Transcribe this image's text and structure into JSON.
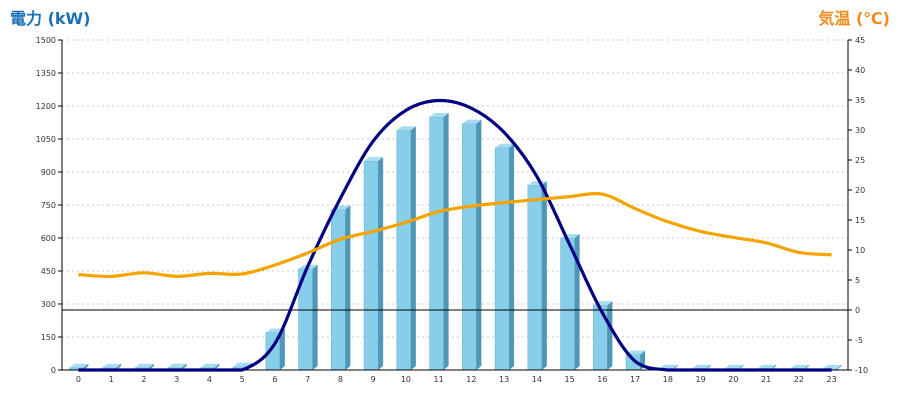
{
  "chart_data": {
    "type": "bar",
    "title": "",
    "left_axis": {
      "label": "電力 (kW)",
      "color": "#1a6fb5",
      "ylim": [
        0,
        1500
      ],
      "ticks": [
        0,
        150,
        300,
        450,
        600,
        750,
        900,
        1050,
        1200,
        1350,
        1500
      ]
    },
    "right_axis": {
      "label": "気温 (℃)",
      "color": "#f08c1e",
      "ylim": [
        -10,
        45
      ],
      "ticks": [
        -10,
        -5,
        0,
        5,
        10,
        15,
        20,
        25,
        30,
        35,
        40,
        45
      ]
    },
    "categories": [
      "0",
      "1",
      "2",
      "3",
      "4",
      "5",
      "6",
      "7",
      "8",
      "9",
      "10",
      "11",
      "12",
      "13",
      "14",
      "15",
      "16",
      "17",
      "18",
      "19",
      "20",
      "21",
      "22",
      "23"
    ],
    "grid": true,
    "series": [
      {
        "kind": "bar",
        "axis": "left",
        "color": "#87ceeb",
        "values": [
          10,
          10,
          10,
          10,
          10,
          15,
          170,
          460,
          730,
          950,
          1090,
          1150,
          1120,
          1010,
          840,
          600,
          295,
          70,
          5,
          5,
          5,
          5,
          5,
          5
        ]
      },
      {
        "kind": "line",
        "axis": "left",
        "color": "#000080",
        "values": [
          0,
          0,
          0,
          0,
          0,
          0,
          120,
          470,
          780,
          1040,
          1180,
          1225,
          1190,
          1080,
          880,
          570,
          260,
          40,
          0,
          0,
          0,
          0,
          0,
          0
        ]
      },
      {
        "kind": "line",
        "axis": "right",
        "color": "#f5a300",
        "values": [
          5.9,
          5.6,
          6.2,
          5.6,
          6.1,
          6.0,
          7.5,
          9.5,
          11.8,
          13.1,
          14.6,
          16.4,
          17.3,
          17.9,
          18.4,
          18.9,
          19.3,
          16.9,
          14.7,
          13.1,
          12.1,
          11.2,
          9.6,
          9.2
        ]
      }
    ]
  }
}
